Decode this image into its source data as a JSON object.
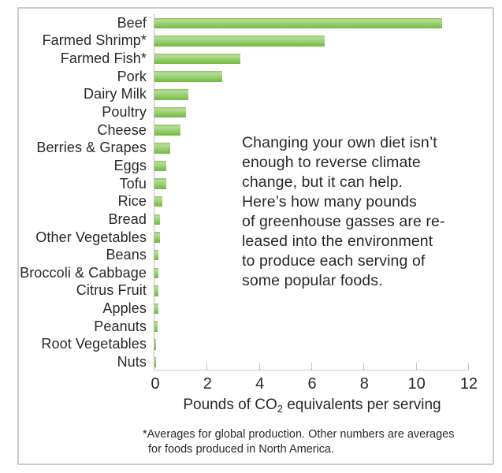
{
  "chart_data": {
    "type": "bar",
    "orientation": "horizontal",
    "categories": [
      "Beef",
      "Farmed Shrimp*",
      "Farmed Fish*",
      "Pork",
      "Dairy Milk",
      "Poultry",
      "Cheese",
      "Berries & Grapes",
      "Eggs",
      "Tofu",
      "Rice",
      "Bread",
      "Other Vegetables",
      "Beans",
      "Broccoli & Cabbage",
      "Citrus Fruit",
      "Apples",
      "Peanuts",
      "Root Vegetables",
      "Nuts"
    ],
    "values": [
      11.0,
      6.5,
      3.3,
      2.6,
      1.3,
      1.2,
      1.0,
      0.6,
      0.45,
      0.45,
      0.3,
      0.2,
      0.2,
      0.15,
      0.15,
      0.15,
      0.15,
      0.13,
      0.07,
      0.05
    ],
    "xlim": [
      0,
      12
    ],
    "x_ticks": [
      0,
      2,
      4,
      6,
      8,
      10,
      12
    ],
    "grid": false,
    "legend": "none",
    "xlabel": {
      "prefix": "Pounds of CO",
      "sub": "2",
      "suffix": " equivalents per serving"
    },
    "annotation": "Changing your own diet isn’t\nenough to reverse climate\nchange, but it can help.\nHere’s how many pounds\nof greenhouse gasses are re-\nleased into the environment\nto produce each serving of\nsome popular foods.",
    "footnote_line1": "*Averages for global production. Other numbers are averages",
    "footnote_line2": "for foods produced in North America.",
    "colors": {
      "bar_top": "#8cc664",
      "bar_light": "#b7dc99",
      "bar_mid": "#a3d27d",
      "bar_bottom": "#6fba3e",
      "axis": "#b9b9b9",
      "text": "#2b2728",
      "frame_border": "#cbcbcb"
    }
  }
}
